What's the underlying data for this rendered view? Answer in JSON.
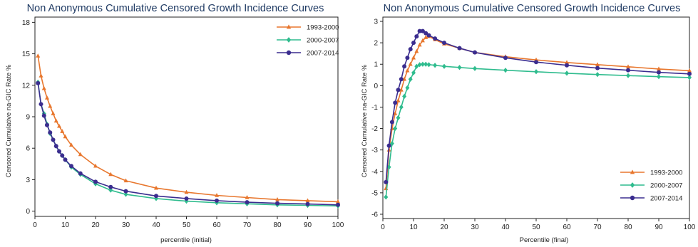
{
  "chart_data": [
    {
      "type": "line",
      "title": "Non Anonymous Cumulative Censored Growth Incidence Curves",
      "xlabel": "percentile (initial)",
      "ylabel": "Censored Cumulative na-GIC Rate %",
      "xlim": [
        0,
        100
      ],
      "ylim": [
        -0.5,
        18.5
      ],
      "xticks": [
        0,
        10,
        20,
        30,
        40,
        50,
        60,
        70,
        80,
        90,
        100
      ],
      "yticks": [
        0,
        3,
        6,
        9,
        12,
        15,
        18
      ],
      "grid": false,
      "legend_position": "top-right",
      "x": [
        1,
        2,
        3,
        4,
        5,
        6,
        7,
        8,
        9,
        10,
        12,
        15,
        20,
        25,
        30,
        40,
        50,
        60,
        70,
        80,
        90,
        100
      ],
      "series": [
        {
          "name": "1993-2000",
          "color": "#e8772e",
          "marker": "triangle",
          "values": [
            14.8,
            12.9,
            11.7,
            10.8,
            10.0,
            9.3,
            8.6,
            8.1,
            7.6,
            7.1,
            6.3,
            5.4,
            4.3,
            3.5,
            2.9,
            2.2,
            1.8,
            1.5,
            1.3,
            1.1,
            1.0,
            0.9
          ]
        },
        {
          "name": "2000-2007",
          "color": "#2fbc8e",
          "marker": "diamond",
          "values": [
            12.3,
            10.2,
            9.3,
            8.3,
            7.4,
            6.8,
            6.2,
            5.7,
            5.3,
            4.9,
            4.2,
            3.5,
            2.6,
            2.0,
            1.6,
            1.2,
            0.95,
            0.8,
            0.7,
            0.6,
            0.55,
            0.5
          ]
        },
        {
          "name": "2007-2014",
          "color": "#3b2d8f",
          "marker": "circle",
          "values": [
            12.2,
            10.2,
            9.1,
            8.2,
            7.5,
            6.8,
            6.2,
            5.7,
            5.3,
            4.9,
            4.3,
            3.6,
            2.8,
            2.3,
            1.9,
            1.45,
            1.2,
            1.0,
            0.85,
            0.75,
            0.68,
            0.6
          ]
        }
      ]
    },
    {
      "type": "line",
      "title": "Non Anonymous Cumulative Censored Growth Incidence Curves",
      "xlabel": "Percentile (final)",
      "ylabel": "Censored Cumulative na-GIC Rate %",
      "xlim": [
        0,
        100
      ],
      "ylim": [
        -6.2,
        3.2
      ],
      "xticks": [
        0,
        10,
        20,
        30,
        40,
        50,
        60,
        70,
        80,
        90,
        100
      ],
      "yticks": [
        3,
        2,
        1,
        0,
        -1,
        -2,
        -3,
        -4,
        -5,
        -6
      ],
      "grid": false,
      "legend_position": "bottom-right",
      "x": [
        1,
        2,
        3,
        4,
        5,
        6,
        7,
        8,
        9,
        10,
        11,
        12,
        13,
        14,
        15,
        17,
        20,
        25,
        30,
        40,
        50,
        60,
        70,
        80,
        90,
        100
      ],
      "series": [
        {
          "name": "1993-2000",
          "color": "#e8772e",
          "marker": "triangle",
          "values": [
            -4.8,
            -3.0,
            -2.0,
            -1.3,
            -0.7,
            -0.2,
            0.3,
            0.7,
            1.0,
            1.3,
            1.6,
            1.9,
            2.1,
            2.25,
            2.3,
            2.15,
            1.95,
            1.75,
            1.55,
            1.35,
            1.2,
            1.08,
            0.98,
            0.88,
            0.78,
            0.7
          ]
        },
        {
          "name": "2000-2007",
          "color": "#2fbc8e",
          "marker": "diamond",
          "values": [
            -5.2,
            -3.8,
            -2.7,
            -2.0,
            -1.5,
            -1.0,
            -0.5,
            -0.1,
            0.3,
            0.6,
            0.9,
            0.98,
            1.0,
            1.0,
            0.98,
            0.95,
            0.9,
            0.85,
            0.8,
            0.72,
            0.65,
            0.58,
            0.52,
            0.47,
            0.42,
            0.38
          ]
        },
        {
          "name": "2007-2014",
          "color": "#3b2d8f",
          "marker": "circle",
          "values": [
            -4.5,
            -2.8,
            -1.7,
            -0.8,
            -0.2,
            0.3,
            0.9,
            1.3,
            1.7,
            2.0,
            2.3,
            2.55,
            2.55,
            2.45,
            2.35,
            2.2,
            2.0,
            1.75,
            1.55,
            1.3,
            1.1,
            0.95,
            0.82,
            0.72,
            0.62,
            0.55
          ]
        }
      ]
    }
  ]
}
